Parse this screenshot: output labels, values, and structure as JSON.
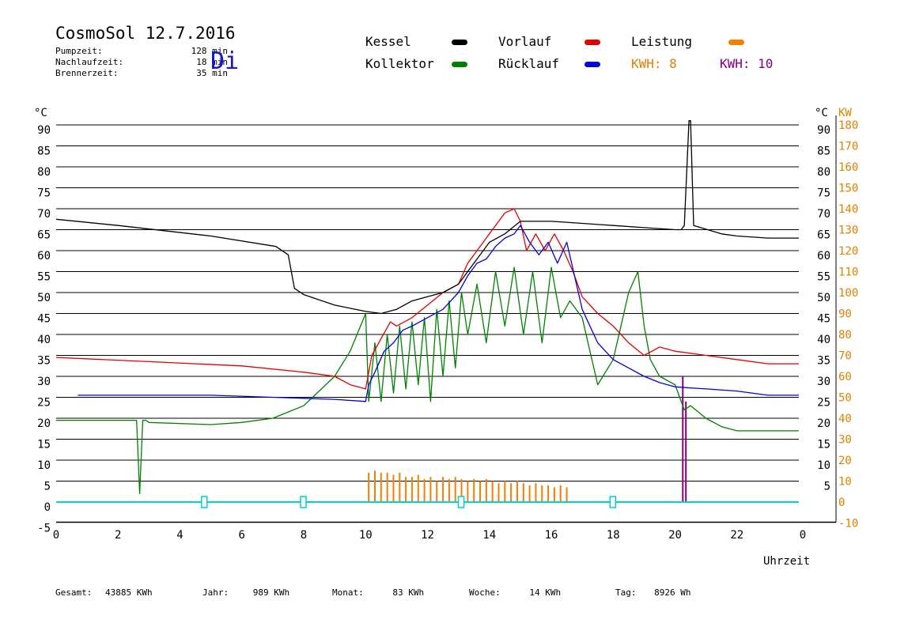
{
  "header": {
    "title": "CosmoSol 12.7.2016",
    "weekday": "Di",
    "info": [
      {
        "label": "Pumpzeit:",
        "value": "128 min"
      },
      {
        "label": "Nachlaufzeit:",
        "value": "18 min"
      },
      {
        "label": "Brennerzeit:",
        "value": "35 min"
      }
    ]
  },
  "legend": {
    "kessel": "Kessel",
    "kollektor": "Kollektor",
    "vorlauf": "Vorlauf",
    "ruecklauf": "Rücklauf",
    "leistung": "Leistung",
    "kwh1": "KWH: 8",
    "kwh2": "KWH: 10"
  },
  "footer": {
    "gesamt_label": "Gesamt:",
    "gesamt_value": "43885 KWh",
    "jahr_label": "Jahr:",
    "jahr_value": "989 KWh",
    "monat_label": "Monat:",
    "monat_value": "83 KWh",
    "woche_label": "Woche:",
    "woche_value": "14 KWh",
    "tag_label": "Tag:",
    "tag_value": "8926 Wh"
  },
  "colors": {
    "kessel": "#000000",
    "kollektor": "#008000",
    "vorlauf": "#e00000",
    "ruecklauf": "#0000e0",
    "leistung": "#f08000",
    "kwh2": "#800080",
    "kw_axis": "#e08000",
    "baseline": "#00d0d0"
  },
  "chart_data": {
    "type": "line",
    "xlabel": "Uhrzeit",
    "ylabel_left": "°C",
    "ylabel_right": "KW",
    "x_ticks": [
      "0",
      "2",
      "4",
      "6",
      "8",
      "10",
      "12",
      "14",
      "16",
      "18",
      "20",
      "22",
      "0"
    ],
    "y_left_ticks": [
      "90",
      "85",
      "80",
      "75",
      "70",
      "65",
      "60",
      "55",
      "50",
      "45",
      "40",
      "35",
      "30",
      "25",
      "20",
      "15",
      "10",
      "5",
      "0",
      "-5"
    ],
    "y_right_ticks": [
      "90",
      "85",
      "80",
      "75",
      "70",
      "65",
      "60",
      "55",
      "50",
      "45",
      "40",
      "35",
      "30",
      "25",
      "20",
      "15",
      "10",
      "5"
    ],
    "y_kw_ticks": [
      "180",
      "170",
      "160",
      "150",
      "140",
      "130",
      "120",
      "110",
      "100",
      "90",
      "80",
      "70",
      "60",
      "50",
      "40",
      "30",
      "20",
      "10",
      "0",
      "-10"
    ],
    "xlim": [
      0,
      24
    ],
    "ylim": [
      -5,
      90
    ],
    "y_kw_lim": [
      -10,
      180
    ],
    "grid": true,
    "series": [
      {
        "name": "Kessel",
        "color": "#000000",
        "x": [
          0,
          2,
          5,
          7.1,
          7.5,
          7.7,
          8,
          9,
          10,
          10.5,
          11,
          11.5,
          12,
          12.5,
          13,
          13.5,
          14,
          14.5,
          15,
          16,
          17,
          18,
          19,
          20,
          20.2,
          20.3,
          20.45,
          20.5,
          20.6,
          21.5,
          22,
          23,
          24
        ],
        "y": [
          67.5,
          66,
          63.5,
          61,
          59,
          51,
          49.5,
          47,
          45.5,
          45,
          46,
          48,
          49,
          50,
          52,
          57,
          62,
          64,
          67,
          67,
          66.5,
          66,
          65.5,
          65,
          65,
          66,
          91,
          91,
          66,
          64,
          63.5,
          63,
          63
        ]
      },
      {
        "name": "Kollektor",
        "color": "#008000",
        "x": [
          0,
          2.6,
          2.7,
          2.8,
          2.9,
          3,
          5,
          6,
          7,
          8,
          9,
          9.5,
          10,
          10.1,
          10.3,
          10.5,
          10.7,
          10.9,
          11.1,
          11.3,
          11.5,
          11.7,
          11.9,
          12.1,
          12.3,
          12.5,
          12.7,
          12.9,
          13.1,
          13.3,
          13.6,
          13.9,
          14.2,
          14.5,
          14.8,
          15.1,
          15.4,
          15.7,
          16,
          16.3,
          16.6,
          17,
          17.5,
          18,
          18.5,
          18.8,
          19,
          19.2,
          19.5,
          20,
          20.3,
          20.5,
          21,
          21.5,
          22,
          23,
          24
        ],
        "y": [
          19.5,
          19.5,
          2,
          19.5,
          19.5,
          19,
          18.5,
          19,
          20,
          23,
          30,
          36,
          45,
          24,
          38,
          24,
          40,
          26,
          42,
          27,
          43,
          28,
          44,
          24,
          46,
          30,
          48,
          32,
          50,
          40,
          52,
          38,
          55,
          42,
          56,
          40,
          55,
          38,
          56,
          44,
          48,
          44,
          28,
          34,
          50,
          55,
          42,
          34,
          30,
          28,
          22,
          23,
          20,
          18,
          17,
          17,
          17
        ]
      },
      {
        "name": "Vorlauf",
        "color": "#e00000",
        "x": [
          0,
          3,
          6,
          8,
          9,
          9.5,
          10,
          10.2,
          10.5,
          10.8,
          11,
          11.5,
          12,
          12.5,
          13,
          13.3,
          13.6,
          13.9,
          14.2,
          14.5,
          14.8,
          15,
          15.2,
          15.5,
          15.8,
          16.1,
          16.4,
          16.7,
          17,
          17.5,
          18,
          18.5,
          19,
          19.5,
          20,
          21,
          22,
          23,
          24
        ],
        "y": [
          34.5,
          33.5,
          32.5,
          31,
          30,
          28,
          27,
          35,
          39,
          43,
          42,
          44,
          47,
          50,
          52,
          57,
          60,
          63,
          66,
          69,
          70,
          67,
          60,
          64,
          60,
          64,
          60,
          55,
          49,
          45,
          42,
          38,
          35,
          37,
          36,
          35,
          34,
          33,
          33
        ]
      },
      {
        "name": "Rücklauf",
        "color": "#0000e0",
        "x": [
          0.7,
          5,
          7,
          9,
          10,
          10.1,
          10.3,
          10.6,
          10.9,
          11.2,
          11.5,
          12,
          12.5,
          13,
          13.3,
          13.6,
          13.9,
          14.2,
          14.5,
          14.8,
          15,
          15.3,
          15.6,
          15.9,
          16.2,
          16.5,
          17,
          17.5,
          18,
          18.5,
          19,
          19.5,
          20,
          21,
          22,
          23,
          24
        ],
        "y": [
          25.5,
          25.5,
          25,
          24.5,
          24,
          28,
          31,
          36,
          38,
          41,
          42,
          44,
          46,
          50,
          54,
          57,
          58,
          61,
          63,
          64,
          66,
          62,
          59,
          62,
          57,
          62,
          46,
          38,
          34,
          32,
          30,
          28.5,
          27.5,
          27,
          26.5,
          25.5,
          25.5
        ]
      }
    ],
    "bars": [
      {
        "name": "Leistung",
        "color": "#f08000",
        "unit": "KW",
        "x": [
          10.1,
          10.3,
          10.5,
          10.7,
          10.9,
          11.1,
          11.3,
          11.5,
          11.7,
          11.9,
          12.1,
          12.3,
          12.5,
          12.7,
          12.9,
          13.1,
          13.3,
          13.5,
          13.7,
          13.9,
          14.1,
          14.3,
          14.5,
          14.7,
          14.9,
          15.1,
          15.3,
          15.5,
          15.7,
          15.9,
          16.1,
          16.3,
          16.5
        ],
        "y": [
          14,
          15,
          14,
          14,
          13,
          14,
          12,
          12,
          13,
          11,
          12,
          10,
          12,
          11,
          12,
          11,
          10,
          11,
          10,
          11,
          10,
          9,
          10,
          9,
          10,
          9,
          8,
          9,
          8,
          8,
          7,
          8,
          7
        ]
      },
      {
        "name": "KWH: 10",
        "color": "#800080",
        "unit": "°C",
        "x": [
          20.25,
          20.35
        ],
        "y": [
          30,
          24
        ]
      }
    ],
    "markers": [
      {
        "x": 4.8,
        "y": 0
      },
      {
        "x": 8,
        "y": 0
      },
      {
        "x": 13.1,
        "y": 0
      },
      {
        "x": 18,
        "y": 0
      }
    ]
  }
}
